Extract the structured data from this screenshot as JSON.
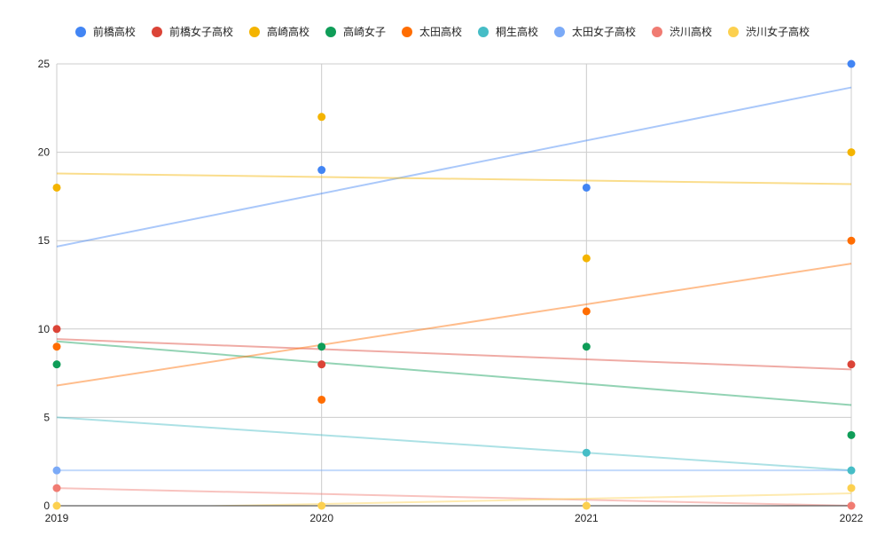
{
  "chart_data": {
    "type": "scatter",
    "x": [
      2019,
      2020,
      2021,
      2022
    ],
    "xlabel": "",
    "ylabel": "",
    "title": "",
    "ylim": [
      0,
      25
    ],
    "xlim": [
      2019,
      2022
    ],
    "yticks": [
      0,
      5,
      10,
      15,
      20,
      25
    ],
    "xtick_labels": [
      "2019",
      "2020",
      "2021",
      "2022"
    ],
    "ytick_labels": [
      "0",
      "5",
      "10",
      "15",
      "20",
      "25"
    ],
    "grid": true,
    "legend_position": "top",
    "trendlines": "linear",
    "series": [
      {
        "name": "前橋高校",
        "color": "#4285f4",
        "values": [
          null,
          19,
          18,
          25
        ]
      },
      {
        "name": "前橋女子高校",
        "color": "#db4437",
        "values": [
          10,
          8,
          null,
          8
        ]
      },
      {
        "name": "高崎高校",
        "color": "#f4b400",
        "values": [
          18,
          22,
          14,
          20
        ]
      },
      {
        "name": "高崎女子",
        "color": "#0f9d58",
        "values": [
          8,
          9,
          9,
          4
        ]
      },
      {
        "name": "太田高校",
        "color": "#ff6d01",
        "values": [
          9,
          6,
          11,
          15
        ]
      },
      {
        "name": "桐生高校",
        "color": "#46bdc6",
        "values": [
          null,
          null,
          3,
          2
        ]
      },
      {
        "name": "太田女子高校",
        "color": "#7baaf7",
        "values": [
          2,
          null,
          null,
          null
        ]
      },
      {
        "name": "渋川高校",
        "color": "#f07b72",
        "values": [
          1,
          null,
          null,
          0
        ]
      },
      {
        "name": "渋川女子高校",
        "color": "#fcd04f",
        "values": [
          0,
          0,
          0,
          1
        ]
      }
    ]
  }
}
